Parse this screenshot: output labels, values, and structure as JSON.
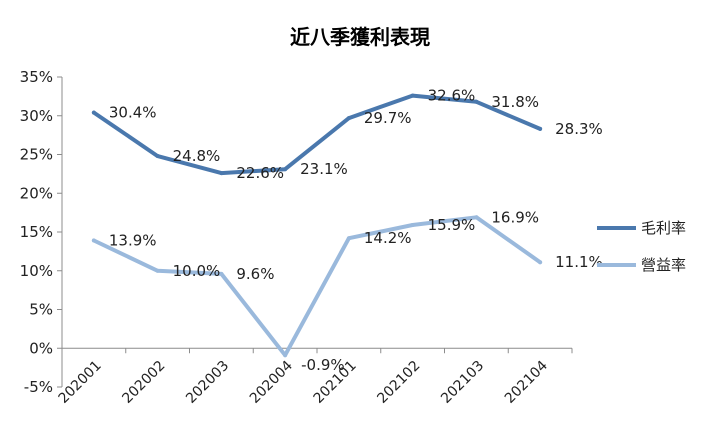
{
  "chart_data": {
    "type": "line",
    "title": "近八季獲利表現",
    "xlabel": "",
    "ylabel": "",
    "categories": [
      "202001",
      "202002",
      "202003",
      "202004",
      "202101",
      "202102",
      "202103",
      "202104"
    ],
    "ylim": [
      -5,
      35
    ],
    "yticks": [
      "-5%",
      "0%",
      "5%",
      "10%",
      "15%",
      "20%",
      "25%",
      "30%",
      "35%"
    ],
    "grid": false,
    "legend_position": "right",
    "series": [
      {
        "name": "毛利率",
        "color": "#4a78ad",
        "values": [
          30.4,
          24.8,
          22.6,
          23.1,
          29.7,
          32.6,
          31.8,
          28.3
        ],
        "labels": [
          "30.4%",
          "24.8%",
          "22.6%",
          "23.1%",
          "29.7%",
          "32.6%",
          "31.8%",
          "28.3%"
        ]
      },
      {
        "name": "營益率",
        "color": "#9ab9dc",
        "values": [
          13.9,
          10.0,
          9.6,
          -0.9,
          14.2,
          15.9,
          16.9,
          11.1
        ],
        "labels": [
          "13.9%",
          "10.0%",
          "9.6%",
          "-0.9%",
          "14.2%",
          "15.9%",
          "16.9%",
          "11.1%"
        ]
      }
    ]
  }
}
